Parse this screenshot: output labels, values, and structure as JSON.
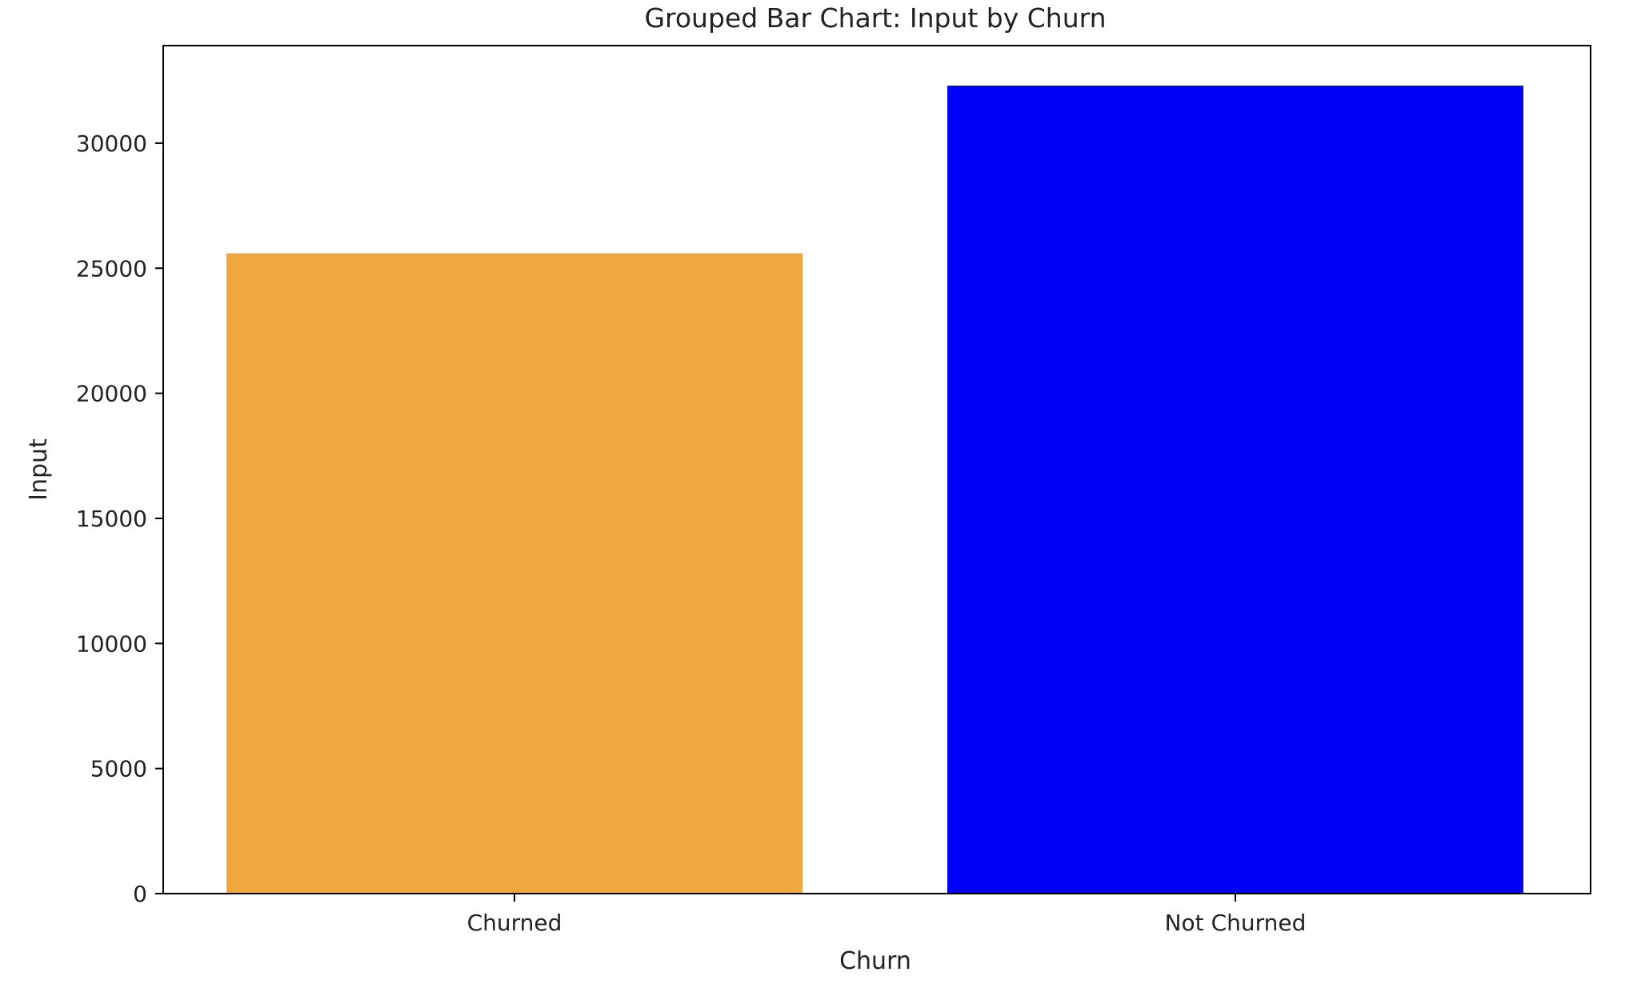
{
  "chart_data": {
    "type": "bar",
    "title": "Grouped Bar Chart: Input by Churn",
    "xlabel": "Churn",
    "ylabel": "Input",
    "categories": [
      "Churned",
      "Not Churned"
    ],
    "values": [
      25600,
      32300
    ],
    "colors": [
      "#F0A83C",
      "#0000F5"
    ],
    "ylim": [
      0,
      33900
    ],
    "yticks": [
      0,
      5000,
      10000,
      15000,
      20000,
      25000,
      30000
    ],
    "ytick_labels": [
      "0",
      "5000",
      "10000",
      "15000",
      "20000",
      "25000",
      "30000"
    ],
    "grid": false,
    "legend": false
  }
}
